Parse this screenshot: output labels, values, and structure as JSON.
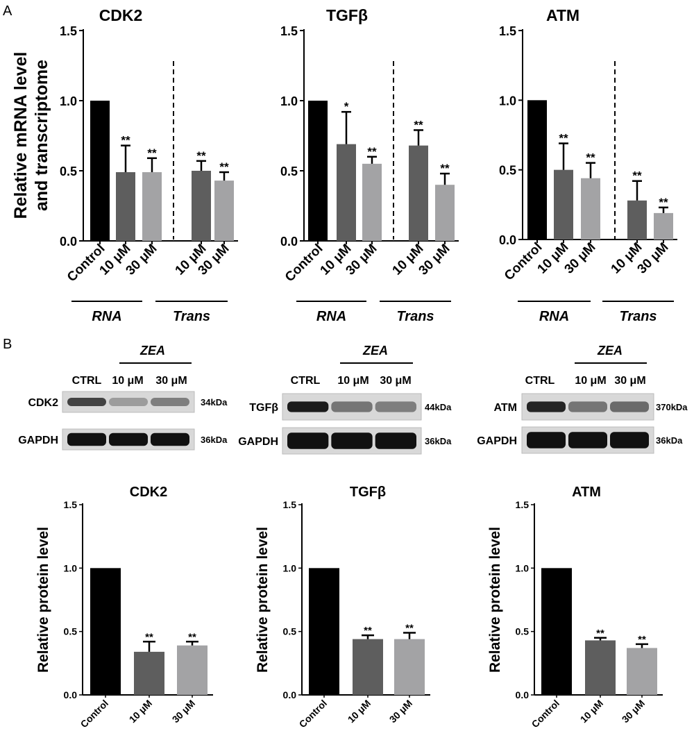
{
  "panel_labels": {
    "a": "A",
    "b": "B"
  },
  "colors": {
    "control": "#000000",
    "dose10": "#5e5e5e",
    "dose30": "#a3a3a5",
    "blot_bg": "#d8d8d8"
  },
  "panel_a": {
    "ylabel_line1": "Relative mRNA level",
    "ylabel_line2": "and transcriptome",
    "group_labels": {
      "rna": "RNA",
      "trans": "Trans"
    }
  },
  "panel_b_blots": {
    "zea_label": "ZEA",
    "lanes": [
      "CTRL",
      "10 μM",
      "30 μM"
    ],
    "loading_label": "GAPDH",
    "loading_kda": "36kDa",
    "blots": [
      {
        "protein": "CDK2",
        "kda": "34kDa",
        "band_intensity": [
          0.75,
          0.3,
          0.45
        ]
      },
      {
        "protein": "TGFβ",
        "kda": "44kDa",
        "band_intensity": [
          0.95,
          0.5,
          0.45
        ]
      },
      {
        "protein": "ATM",
        "kda": "370kDa",
        "band_intensity": [
          0.9,
          0.5,
          0.55
        ]
      }
    ]
  },
  "chart_data": [
    {
      "type": "bar",
      "title": "CDK2",
      "ylabel": "Relative mRNA level and transcriptome",
      "ylim": [
        0,
        1.5
      ],
      "yticks": [
        "0.0",
        "0.5",
        "1.0",
        "1.5"
      ],
      "categories": [
        "Control",
        "10 μM",
        "30 μM",
        "",
        "10 μM",
        "30 μM"
      ],
      "values": [
        1.0,
        0.49,
        0.49,
        0,
        0.5,
        0.43
      ],
      "errors": [
        0,
        0.19,
        0.1,
        0,
        0.07,
        0.06
      ],
      "significance": [
        "",
        "**",
        "**",
        "",
        "**",
        "**"
      ],
      "groups": [
        {
          "name": "RNA",
          "members": [
            0,
            1,
            2
          ]
        },
        {
          "name": "Trans",
          "members": [
            4,
            5
          ]
        }
      ]
    },
    {
      "type": "bar",
      "title": "TGFβ",
      "ylabel": "Relative mRNA level and transcriptome",
      "ylim": [
        0,
        1.5
      ],
      "yticks": [
        "0.0",
        "0.5",
        "1.0",
        "1.5"
      ],
      "categories": [
        "Control",
        "10 μM",
        "30 μM",
        "",
        "10 μM",
        "30 μM"
      ],
      "values": [
        1.0,
        0.69,
        0.55,
        0,
        0.68,
        0.4
      ],
      "errors": [
        0,
        0.23,
        0.05,
        0,
        0.11,
        0.08
      ],
      "significance": [
        "",
        "*",
        "**",
        "",
        "**",
        "**"
      ],
      "groups": [
        {
          "name": "RNA",
          "members": [
            0,
            1,
            2
          ]
        },
        {
          "name": "Trans",
          "members": [
            4,
            5
          ]
        }
      ]
    },
    {
      "type": "bar",
      "title": "ATM",
      "ylabel": "Relative mRNA level and transcriptome",
      "ylim": [
        0,
        1.5
      ],
      "yticks": [
        "0.0",
        "0.5",
        "1.0",
        "1.5"
      ],
      "categories": [
        "Control",
        "10 μM",
        "30 μM",
        "",
        "10 μM",
        "30 μM"
      ],
      "values": [
        1.0,
        0.5,
        0.44,
        0,
        0.28,
        0.19
      ],
      "errors": [
        0,
        0.19,
        0.11,
        0,
        0.14,
        0.04
      ],
      "significance": [
        "",
        "**",
        "**",
        "",
        "**",
        "**"
      ],
      "groups": [
        {
          "name": "RNA",
          "members": [
            0,
            1,
            2
          ]
        },
        {
          "name": "Trans",
          "members": [
            4,
            5
          ]
        }
      ]
    },
    {
      "type": "bar",
      "title": "CDK2",
      "ylabel": "Relative protein level",
      "ylim": [
        0,
        1.5
      ],
      "yticks": [
        "0.0",
        "0.5",
        "1.0",
        "1.5"
      ],
      "categories": [
        "Control",
        "10 μM",
        "30 μM"
      ],
      "values": [
        1.0,
        0.34,
        0.39
      ],
      "errors": [
        0,
        0.08,
        0.03
      ],
      "significance": [
        "",
        "**",
        "**"
      ]
    },
    {
      "type": "bar",
      "title": "TGFβ",
      "ylabel": "Relative protein level",
      "ylim": [
        0,
        1.5
      ],
      "yticks": [
        "0.0",
        "0.5",
        "1.0",
        "1.5"
      ],
      "categories": [
        "Control",
        "10 μM",
        "30 μM"
      ],
      "values": [
        1.0,
        0.44,
        0.44
      ],
      "errors": [
        0,
        0.03,
        0.05
      ],
      "significance": [
        "",
        "**",
        "**"
      ]
    },
    {
      "type": "bar",
      "title": "ATM",
      "ylabel": "Relative protein level",
      "ylim": [
        0,
        1.5
      ],
      "yticks": [
        "0.0",
        "0.5",
        "1.0",
        "1.5"
      ],
      "categories": [
        "Control",
        "10 μM",
        "30 μM"
      ],
      "values": [
        1.0,
        0.43,
        0.37
      ],
      "errors": [
        0,
        0.02,
        0.03
      ],
      "significance": [
        "",
        "**",
        "**"
      ]
    }
  ]
}
